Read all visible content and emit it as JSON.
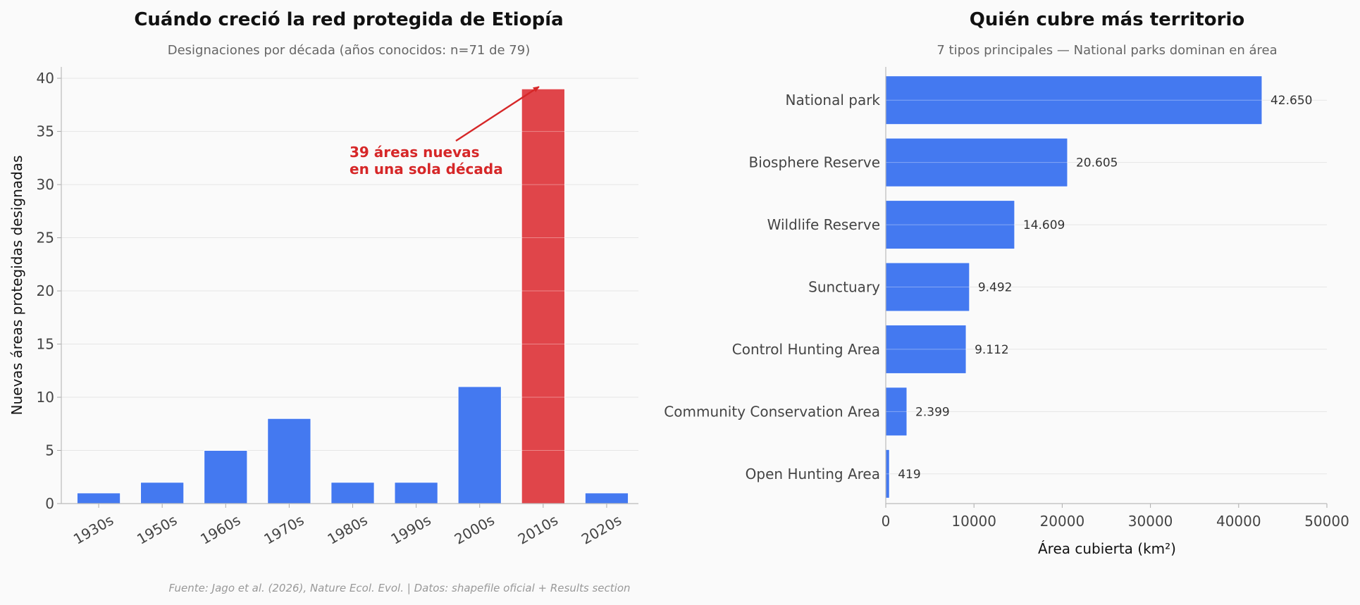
{
  "chart_data": [
    {
      "type": "bar",
      "title": "Cuándo creció la red protegida de Etiopía",
      "subtitle": "Designaciones por década (años conocidos: n=71 de 79)",
      "xlabel": "",
      "ylabel": "Nuevas áreas protegidas designadas",
      "categories": [
        "1930s",
        "1950s",
        "1960s",
        "1970s",
        "1980s",
        "1990s",
        "2000s",
        "2010s",
        "2020s"
      ],
      "values": [
        1,
        2,
        5,
        8,
        2,
        2,
        11,
        39,
        1
      ],
      "highlight_index": 7,
      "ylim": [
        0,
        41
      ],
      "yticks": [
        0,
        5,
        10,
        15,
        20,
        25,
        30,
        35,
        40
      ],
      "grid": true,
      "annotation": {
        "lines": [
          "39 áreas nuevas",
          "en una sola década"
        ],
        "points_to_category": "2010s"
      },
      "colors": {
        "bar": "#4479f0",
        "highlight": "#e0454a",
        "annotation": "#d62728"
      }
    },
    {
      "type": "bar",
      "orientation": "horizontal",
      "title": "Quién cubre más territorio",
      "subtitle": "7 tipos principales — National parks dominan en área",
      "xlabel": "Área cubierta (km²)",
      "ylabel": "",
      "categories": [
        "National park",
        "Biosphere Reserve",
        "Wildlife Reserve",
        "Sunctuary",
        "Control Hunting Area",
        "Community Conservation Area",
        "Open Hunting Area"
      ],
      "values": [
        42650,
        20605,
        14609,
        9492,
        9112,
        2399,
        419
      ],
      "value_labels": [
        "42.650",
        "20.605",
        "14.609",
        "9.492",
        "9.112",
        "2.399",
        "419"
      ],
      "xlim": [
        0,
        50000
      ],
      "xticks": [
        "0",
        "10000",
        "20000",
        "30000",
        "40000",
        "50000"
      ],
      "grid": true,
      "colors": {
        "bar": "#4479f0"
      }
    }
  ],
  "source": "Fuente: Jago et al. (2026), Nature Ecol. Evol. | Datos: shapefile oficial + Results section"
}
